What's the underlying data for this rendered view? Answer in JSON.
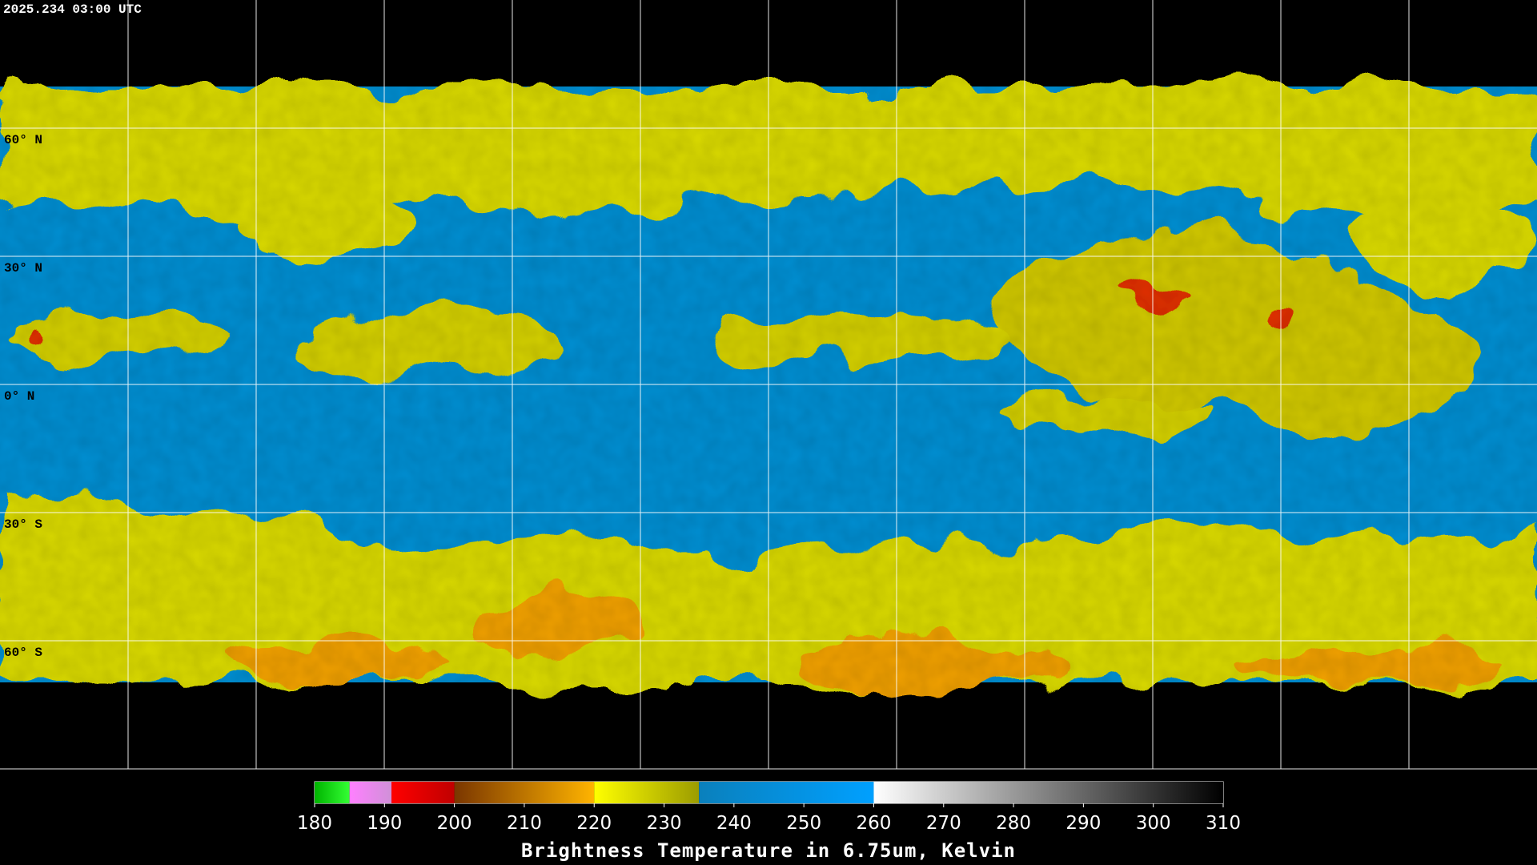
{
  "header": {
    "timestamp": "2025.234 03:00 UTC"
  },
  "map": {
    "latitude_labels": [
      "60° N",
      "30° N",
      "0° N",
      "30° S",
      "60° S"
    ]
  },
  "colorbar": {
    "title": "Brightness Temperature in 6.75um, Kelvin",
    "range": [
      180,
      310
    ],
    "ticks": [
      180,
      190,
      200,
      210,
      220,
      230,
      240,
      250,
      260,
      270,
      280,
      290,
      300,
      310
    ],
    "segments": [
      {
        "from": 180,
        "to": 185,
        "colors": [
          "#00b400",
          "#33ff33"
        ]
      },
      {
        "from": 185,
        "to": 191,
        "colors": [
          "#ff80ff",
          "#d090d8"
        ]
      },
      {
        "from": 191,
        "to": 200,
        "colors": [
          "#ff0000",
          "#c00000"
        ]
      },
      {
        "from": 200,
        "to": 220,
        "colors": [
          "#7a3600",
          "#ffb400"
        ]
      },
      {
        "from": 220,
        "to": 235,
        "colors": [
          "#ffff00",
          "#9c9c00"
        ]
      },
      {
        "from": 235,
        "to": 260,
        "colors": [
          "#0a80bc",
          "#00a0ff"
        ]
      },
      {
        "from": 260,
        "to": 310,
        "colors": [
          "#ffffff",
          "#000000"
        ]
      }
    ]
  }
}
